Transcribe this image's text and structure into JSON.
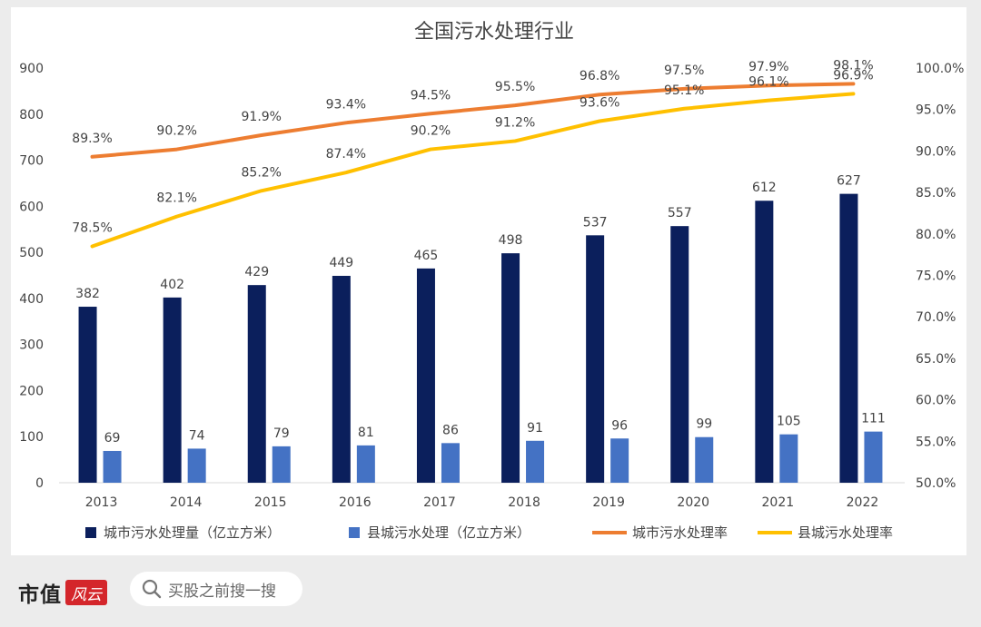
{
  "chart_data": {
    "type": "bar",
    "title": "全国污水处理行业",
    "categories": [
      "2013",
      "2014",
      "2015",
      "2016",
      "2017",
      "2018",
      "2019",
      "2020",
      "2021",
      "2022"
    ],
    "y_left": {
      "min": 0,
      "max": 900,
      "ticks": [
        0,
        100,
        200,
        300,
        400,
        500,
        600,
        700,
        800,
        900
      ]
    },
    "y_right": {
      "min": 50,
      "max": 100,
      "ticks": [
        50,
        55,
        60,
        65,
        70,
        75,
        80,
        85,
        90,
        95,
        100
      ],
      "tick_labels": [
        "50.0%",
        "55.0%",
        "60.0%",
        "65.0%",
        "70.0%",
        "75.0%",
        "80.0%",
        "85.0%",
        "90.0%",
        "95.0%",
        "100.0%"
      ]
    },
    "bar_series": [
      {
        "name": "城市污水处理量（亿立方米）",
        "color": "#0b1f5c",
        "values": [
          382,
          402,
          429,
          449,
          465,
          498,
          537,
          557,
          612,
          627
        ]
      },
      {
        "name": "县城污水处理（亿立方米）",
        "color": "#4472c4",
        "values": [
          69,
          74,
          79,
          81,
          86,
          91,
          96,
          99,
          105,
          111
        ]
      }
    ],
    "line_series": [
      {
        "name": "城市污水处理率",
        "color": "#ed7d31",
        "values": [
          89.3,
          90.2,
          91.9,
          93.4,
          94.5,
          95.5,
          96.8,
          97.5,
          97.9,
          98.1
        ],
        "labels": [
          "89.3%",
          "90.2%",
          "91.9%",
          "93.4%",
          "94.5%",
          "95.5%",
          "96.8%",
          "97.5%",
          "97.9%",
          "98.1%"
        ]
      },
      {
        "name": "县城污水处理率",
        "color": "#ffc000",
        "values": [
          78.5,
          82.1,
          85.2,
          87.4,
          90.2,
          91.2,
          93.6,
          95.1,
          96.1,
          96.9
        ],
        "labels": [
          "78.5%",
          "82.1%",
          "85.2%",
          "87.4%",
          "90.2%",
          "91.2%",
          "93.6%",
          "95.1%",
          "96.1%",
          "96.9%"
        ]
      }
    ],
    "legend_position": "bottom",
    "grid": false
  },
  "footer": {
    "brand": "市值",
    "brand_mark": "风云",
    "search_placeholder": "买股之前搜一搜",
    "search_icon": "search-icon"
  }
}
